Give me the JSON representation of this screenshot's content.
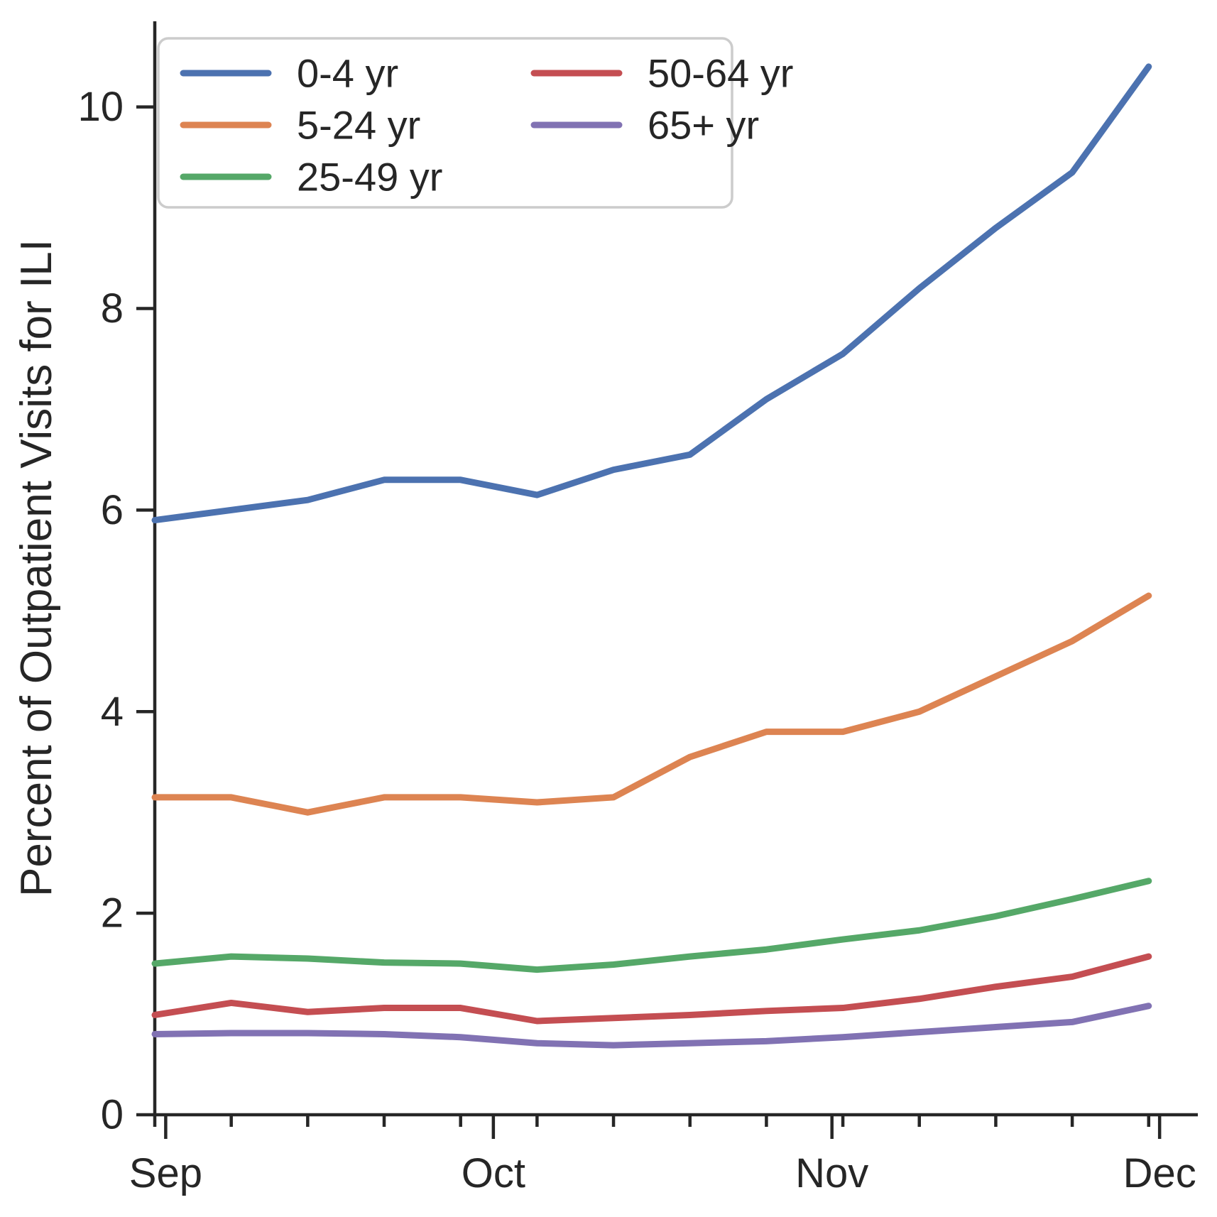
{
  "chart_data": {
    "type": "line",
    "title": "",
    "xlabel": "",
    "ylabel": "Percent of Outpatient Visits for ILI",
    "x_unit": "days since Aug 31 (weekly data points, Sep through Dec)",
    "x_days": [
      0,
      7,
      14,
      21,
      28,
      35,
      42,
      49,
      56,
      63,
      70,
      77,
      84,
      91
    ],
    "xlim_days": [
      0,
      95.5
    ],
    "ylim": [
      0,
      10.85
    ],
    "y_ticks": [
      0,
      2,
      4,
      6,
      8,
      10
    ],
    "x_major_ticks": [
      {
        "label": "Sep",
        "day": 1
      },
      {
        "label": "Oct",
        "day": 31
      },
      {
        "label": "Nov",
        "day": 62
      },
      {
        "label": "Dec",
        "day": 92
      }
    ],
    "x_minor_tick_days": [
      0,
      7,
      14,
      21,
      28,
      35,
      42,
      49,
      56,
      63,
      70,
      77,
      84,
      91
    ],
    "grid": false,
    "legend_position": "upper-left, 2 columns",
    "series": [
      {
        "name": "0-4 yr",
        "color": "#4C72B0",
        "values": [
          5.9,
          6.0,
          6.1,
          6.3,
          6.3,
          6.15,
          6.4,
          6.55,
          7.1,
          7.55,
          8.2,
          8.8,
          9.35,
          10.4
        ]
      },
      {
        "name": "5-24 yr",
        "color": "#DD8452",
        "values": [
          3.15,
          3.15,
          3.0,
          3.15,
          3.15,
          3.1,
          3.15,
          3.55,
          3.8,
          3.8,
          4.0,
          4.35,
          4.7,
          5.15
        ]
      },
      {
        "name": "25-49 yr",
        "color": "#55A868",
        "values": [
          1.5,
          1.57,
          1.55,
          1.51,
          1.5,
          1.44,
          1.49,
          1.57,
          1.64,
          1.74,
          1.83,
          1.97,
          2.14,
          2.32
        ]
      },
      {
        "name": "50-64 yr",
        "color": "#C44E52",
        "values": [
          0.99,
          1.11,
          1.02,
          1.06,
          1.06,
          0.93,
          0.96,
          0.99,
          1.03,
          1.06,
          1.15,
          1.27,
          1.37,
          1.57
        ]
      },
      {
        "name": "65+ yr",
        "color": "#8172B3",
        "values": [
          0.8,
          0.81,
          0.81,
          0.8,
          0.77,
          0.71,
          0.69,
          0.71,
          0.73,
          0.77,
          0.82,
          0.87,
          0.92,
          1.08
        ]
      }
    ],
    "legend_column_assignment": [
      [
        0,
        1,
        2
      ],
      [
        3,
        4
      ]
    ]
  },
  "style": {
    "axis_color": "#262626",
    "legend_border_color": "#cccccc",
    "background_color": "#ffffff"
  }
}
